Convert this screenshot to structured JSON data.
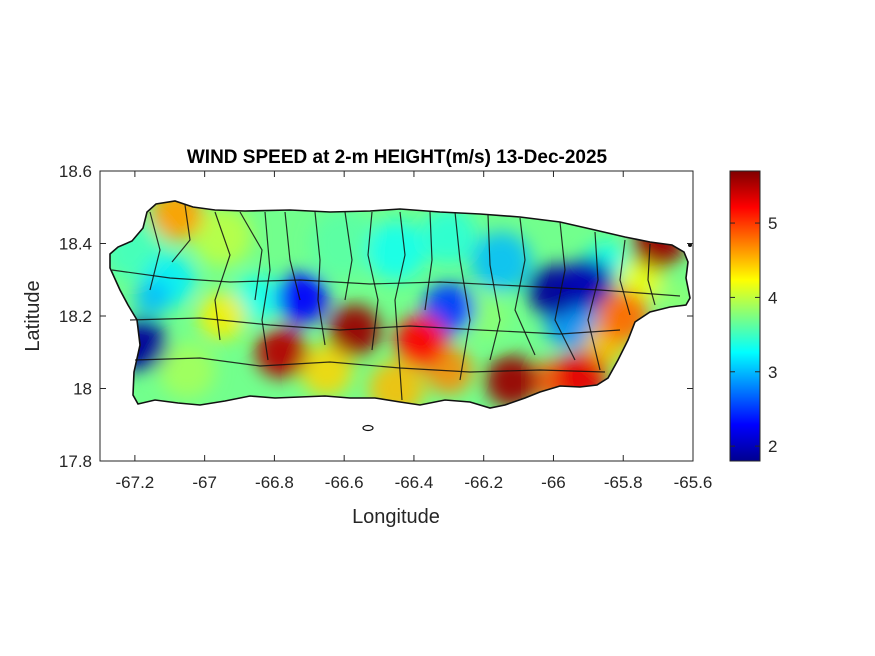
{
  "chart_data": {
    "type": "heatmap",
    "title": "WIND SPEED at 2-m HEIGHT(m/s) 13-Dec-2025",
    "xlabel": "Longitude",
    "ylabel": "Latitude",
    "xlim": [
      -67.3,
      -65.6
    ],
    "ylim": [
      17.8,
      18.6
    ],
    "x_ticks": [
      "-67.2",
      "-67",
      "-66.8",
      "-66.6",
      "-66.4",
      "-66.2",
      "-66",
      "-65.8",
      "-65.6"
    ],
    "y_ticks": [
      "18.6",
      "18.4",
      "18.2",
      "18",
      "17.8"
    ],
    "colorbar": {
      "colormap": "jet",
      "range": [
        1.8,
        5.7
      ],
      "ticks": [
        "5",
        "4",
        "3",
        "2"
      ]
    },
    "field_hotspots": [
      {
        "lon": -67.18,
        "lat": 18.12,
        "value": 1.9
      },
      {
        "lon": -66.72,
        "lat": 18.25,
        "value": 2.3
      },
      {
        "lon": -66.0,
        "lat": 18.27,
        "value": 1.9
      },
      {
        "lon": -65.9,
        "lat": 18.29,
        "value": 2.0
      },
      {
        "lon": -66.3,
        "lat": 18.22,
        "value": 2.5
      },
      {
        "lon": -66.78,
        "lat": 18.1,
        "value": 5.5
      },
      {
        "lon": -66.57,
        "lat": 18.16,
        "value": 5.6
      },
      {
        "lon": -66.38,
        "lat": 18.13,
        "value": 5.2
      },
      {
        "lon": -66.12,
        "lat": 18.02,
        "value": 5.6
      },
      {
        "lon": -65.92,
        "lat": 18.03,
        "value": 5.3
      },
      {
        "lon": -65.7,
        "lat": 18.4,
        "value": 5.6
      },
      {
        "lon": -67.08,
        "lat": 18.48,
        "value": 4.6
      },
      {
        "lon": -65.8,
        "lat": 18.2,
        "value": 4.8
      }
    ]
  }
}
